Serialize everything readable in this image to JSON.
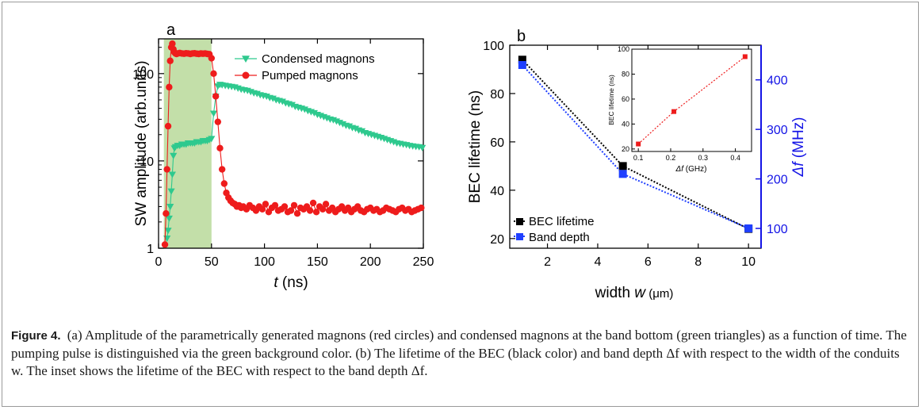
{
  "chart_data": [
    {
      "type": "scatter",
      "panel_label": "a",
      "xlabel_var": "t",
      "xlabel_unit": " (ns)",
      "ylabel": "SW amplitude (arb.units)",
      "y_scale": "log",
      "xlim": [
        0,
        250
      ],
      "ylim": [
        1,
        250
      ],
      "x_ticks": [
        0,
        50,
        100,
        150,
        200,
        250
      ],
      "y_ticks": [
        1,
        10,
        100
      ],
      "shaded_region": [
        5,
        50
      ],
      "shaded_color": "#b9d99a",
      "legend": "top-right",
      "series": [
        {
          "name": "Condensed magnons",
          "marker": "triangle-down",
          "color": "#2ec98e",
          "x": [
            8,
            9,
            10,
            11,
            12,
            13,
            14,
            15,
            16,
            18,
            20,
            22,
            24,
            26,
            28,
            30,
            32,
            34,
            36,
            38,
            40,
            42,
            44,
            46,
            48,
            50,
            52,
            54,
            56,
            58,
            60,
            63,
            66,
            69,
            72,
            75,
            78,
            81,
            84,
            87,
            90,
            93,
            96,
            99,
            102,
            105,
            108,
            111,
            114,
            117,
            120,
            123,
            126,
            129,
            132,
            135,
            138,
            141,
            144,
            147,
            150,
            153,
            156,
            159,
            162,
            165,
            168,
            171,
            174,
            177,
            180,
            183,
            186,
            189,
            192,
            195,
            198,
            201,
            204,
            207,
            210,
            213,
            216,
            219,
            222,
            225,
            228,
            231,
            234,
            237,
            240,
            243,
            246,
            249
          ],
          "values": [
            1.3,
            1.6,
            2.2,
            3.0,
            4.5,
            7.0,
            11.5,
            14.0,
            14.5,
            15.0,
            15.0,
            15.5,
            15.5,
            15.5,
            16.0,
            16.0,
            16.0,
            16.0,
            16.5,
            16.5,
            16.5,
            17.0,
            17.0,
            17.0,
            17.5,
            18.0,
            35,
            55,
            72,
            75,
            74,
            73,
            72,
            71,
            70,
            68,
            66,
            65,
            64,
            62,
            60,
            59,
            57,
            56,
            55,
            53,
            52,
            50,
            49,
            48,
            46,
            45,
            44,
            42,
            41,
            40,
            39,
            37.5,
            36.5,
            35.5,
            34,
            33,
            32,
            31,
            30,
            29.5,
            28.5,
            27.5,
            26.5,
            25.5,
            25,
            24,
            23.5,
            22.5,
            22,
            21,
            20.5,
            20,
            19.5,
            19,
            18.5,
            18,
            17.5,
            17,
            16.5,
            16,
            15.8,
            15.5,
            15.3,
            15,
            14.8,
            14.6,
            14.5,
            14.2
          ]
        },
        {
          "name": "Pumped magnons",
          "marker": "circle",
          "color": "#ee1c1c",
          "x": [
            6,
            7,
            8,
            9,
            10,
            11,
            12,
            13,
            14,
            15,
            16,
            17,
            18,
            20,
            22,
            24,
            26,
            28,
            30,
            32,
            34,
            36,
            38,
            40,
            42,
            44,
            46,
            48,
            50,
            52,
            54,
            56,
            58,
            60,
            62,
            64,
            66,
            68,
            70,
            72,
            74,
            76,
            78,
            80,
            83,
            86,
            89,
            92,
            95,
            98,
            101,
            104,
            107,
            110,
            113,
            116,
            119,
            122,
            125,
            128,
            131,
            134,
            137,
            140,
            143,
            146,
            149,
            152,
            155,
            158,
            161,
            164,
            167,
            170,
            173,
            176,
            179,
            182,
            185,
            188,
            191,
            194,
            197,
            200,
            203,
            206,
            209,
            212,
            215,
            218,
            221,
            224,
            227,
            230,
            233,
            236,
            239,
            242,
            245,
            248
          ],
          "values": [
            1.1,
            2.5,
            8,
            25,
            70,
            140,
            200,
            220,
            190,
            175,
            170,
            168,
            170,
            172,
            170,
            169,
            171,
            170,
            168,
            170,
            171,
            169,
            168,
            170,
            169,
            170,
            168,
            167,
            150,
            100,
            55,
            28,
            14,
            8,
            5.5,
            4.3,
            3.8,
            3.5,
            3.3,
            3.2,
            3.0,
            3.1,
            2.9,
            3.0,
            2.8,
            3.1,
            2.9,
            2.7,
            3.0,
            2.8,
            3.2,
            2.6,
            2.9,
            3.1,
            2.7,
            2.8,
            3.0,
            2.6,
            2.7,
            3.1,
            2.5,
            2.9,
            2.8,
            3.0,
            2.7,
            3.3,
            2.6,
            3.0,
            2.8,
            3.2,
            2.7,
            2.9,
            2.6,
            2.8,
            3.0,
            2.7,
            2.9,
            2.6,
            2.8,
            3.0,
            2.7,
            2.6,
            2.8,
            2.9,
            2.7,
            2.8,
            2.6,
            2.7,
            2.9,
            2.8,
            2.7,
            2.6,
            2.8,
            2.9,
            2.7,
            2.8,
            2.6,
            2.7,
            2.8,
            2.9
          ]
        }
      ]
    },
    {
      "type": "line",
      "panel_label": "b",
      "xlabel_main": "width ",
      "xlabel_var": "w",
      "xlabel_unit": " (μm)",
      "ylabel_left": "BEC lifetime (ns)",
      "ylabel_right_var": "Δf",
      "ylabel_right_unit": " (MHz)",
      "xlim": [
        0.5,
        10.5
      ],
      "ylim_left": [
        16,
        100
      ],
      "ylim_right": [
        60,
        470
      ],
      "x_ticks": [
        2,
        4,
        6,
        8,
        10
      ],
      "y_ticks_left": [
        20,
        40,
        60,
        80,
        100
      ],
      "y_ticks_right": [
        100,
        200,
        300,
        400
      ],
      "right_axis_color": "#1414e6",
      "legend": "bottom-left",
      "series": [
        {
          "name": "BEC lifetime",
          "axis": "left",
          "color": "#000000",
          "x": [
            1,
            5,
            10
          ],
          "values": [
            94,
            50,
            24
          ]
        },
        {
          "name": "Band depth",
          "axis": "right",
          "color": "#1f3fff",
          "x": [
            1,
            5,
            10
          ],
          "values": [
            430,
            210,
            100
          ]
        }
      ],
      "inset": {
        "type": "line",
        "xlabel_var": "Δf",
        "xlabel_unit": " (GHz)",
        "ylabel": "BEC lifetime (ns)",
        "xlim": [
          0.08,
          0.45
        ],
        "ylim": [
          18,
          100
        ],
        "x_ticks": [
          0.1,
          0.2,
          0.3,
          0.4
        ],
        "y_ticks": [
          20,
          40,
          60,
          80,
          100
        ],
        "color": "#ee1c1c",
        "x": [
          0.1,
          0.21,
          0.43
        ],
        "values": [
          24,
          50,
          94
        ]
      }
    }
  ],
  "caption": {
    "label": "Figure 4.",
    "text": "(a) Amplitude of the parametrically generated magnons (red circles) and condensed magnons at the band bottom (green triangles) as a function of time. The pumping pulse is distinguished via the green background color. (b) The lifetime of the BEC (black color) and band depth Δf with respect to the width of the conduits w. The inset shows the lifetime of the BEC with respect to the band depth Δf."
  }
}
